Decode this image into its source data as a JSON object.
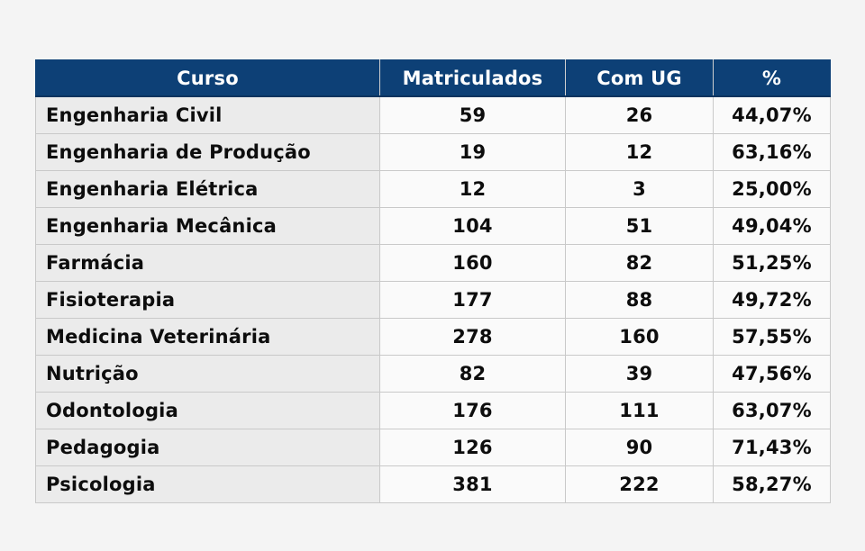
{
  "page": {
    "background_color": "#f4f4f4"
  },
  "table": {
    "header_bg": "#0d4076",
    "header_text_color": "#ffffff",
    "first_column_bg": "#ebebeb",
    "numeric_column_bg": "#fafafa",
    "border_color": "#c9c9c9",
    "columns": [
      {
        "key": "curso",
        "label": "Curso"
      },
      {
        "key": "matriculados",
        "label": "Matriculados"
      },
      {
        "key": "com_ug",
        "label": "Com UG"
      },
      {
        "key": "pct",
        "label": "%"
      }
    ],
    "rows": [
      {
        "curso": "Engenharia Civil",
        "matriculados": "59",
        "com_ug": "26",
        "pct": "44,07%"
      },
      {
        "curso": "Engenharia de Produção",
        "matriculados": "19",
        "com_ug": "12",
        "pct": "63,16%"
      },
      {
        "curso": "Engenharia Elétrica",
        "matriculados": "12",
        "com_ug": "3",
        "pct": "25,00%"
      },
      {
        "curso": "Engenharia Mecânica",
        "matriculados": "104",
        "com_ug": "51",
        "pct": "49,04%"
      },
      {
        "curso": "Farmácia",
        "matriculados": "160",
        "com_ug": "82",
        "pct": "51,25%"
      },
      {
        "curso": "Fisioterapia",
        "matriculados": "177",
        "com_ug": "88",
        "pct": "49,72%"
      },
      {
        "curso": "Medicina Veterinária",
        "matriculados": "278",
        "com_ug": "160",
        "pct": "57,55%"
      },
      {
        "curso": "Nutrição",
        "matriculados": "82",
        "com_ug": "39",
        "pct": "47,56%"
      },
      {
        "curso": "Odontologia",
        "matriculados": "176",
        "com_ug": "111",
        "pct": "63,07%"
      },
      {
        "curso": "Pedagogia",
        "matriculados": "126",
        "com_ug": "90",
        "pct": "71,43%"
      },
      {
        "curso": "Psicologia",
        "matriculados": "381",
        "com_ug": "222",
        "pct": "58,27%"
      }
    ]
  },
  "chart_data": {
    "type": "table",
    "title": "",
    "columns": [
      "Curso",
      "Matriculados",
      "Com UG",
      "%"
    ],
    "rows": [
      [
        "Engenharia Civil",
        59,
        26,
        "44,07%"
      ],
      [
        "Engenharia de Produção",
        19,
        12,
        "63,16%"
      ],
      [
        "Engenharia Elétrica",
        12,
        3,
        "25,00%"
      ],
      [
        "Engenharia Mecânica",
        104,
        51,
        "49,04%"
      ],
      [
        "Farmácia",
        160,
        82,
        "51,25%"
      ],
      [
        "Fisioterapia",
        177,
        88,
        "49,72%"
      ],
      [
        "Medicina Veterinária",
        278,
        160,
        "57,55%"
      ],
      [
        "Nutrição",
        82,
        39,
        "47,56%"
      ],
      [
        "Odontologia",
        176,
        111,
        "63,07%"
      ],
      [
        "Pedagogia",
        126,
        90,
        "71,43%"
      ],
      [
        "Psicologia",
        381,
        222,
        "58,27%"
      ]
    ]
  }
}
